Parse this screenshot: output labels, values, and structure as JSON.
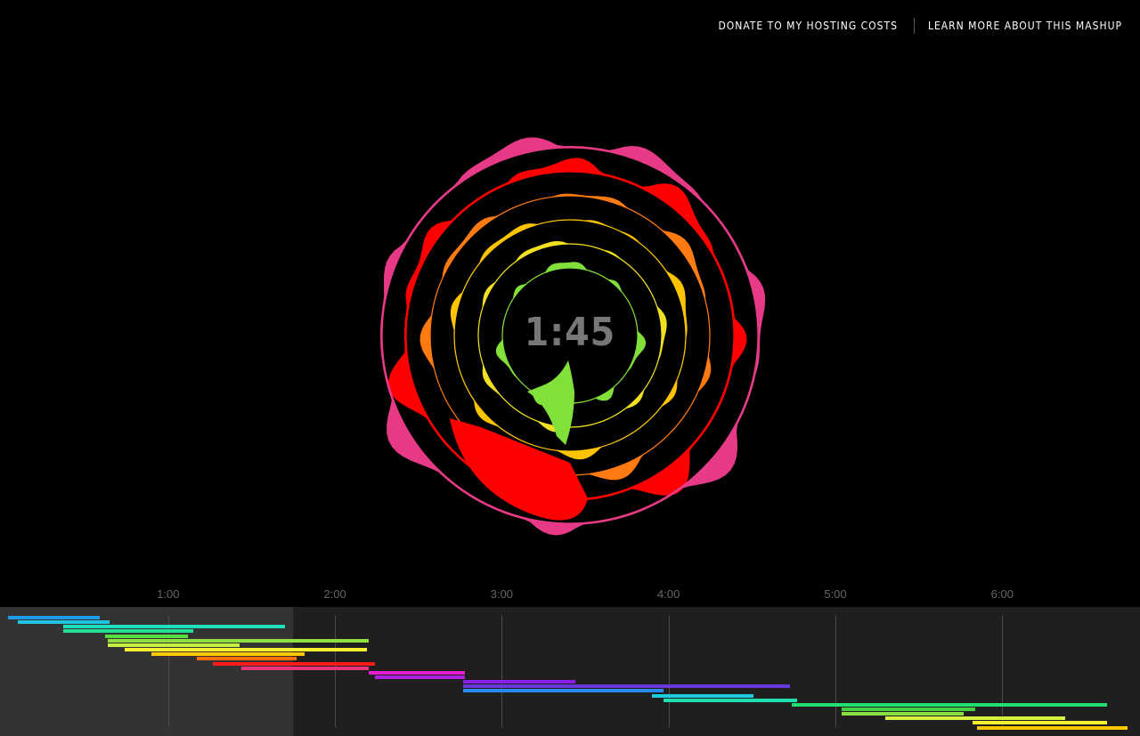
{
  "nav": {
    "donate_label": "DONATE TO MY HOSTING COSTS",
    "learn_label": "LEARN MORE ABOUT THIS MASHUP"
  },
  "player": {
    "current_time": "1:45",
    "played_fraction": 0.257
  },
  "timeline": {
    "ticks": [
      "1:00",
      "2:00",
      "3:00",
      "4:00",
      "5:00",
      "6:00"
    ],
    "tracks": [
      {
        "start": 0.04,
        "end": 0.59,
        "color": "#1e9bea"
      },
      {
        "start": 0.1,
        "end": 0.65,
        "color": "#1ec4e0"
      },
      {
        "start": 0.37,
        "end": 1.7,
        "color": "#1ee0c0"
      },
      {
        "start": 0.37,
        "end": 1.15,
        "color": "#22e09a"
      },
      {
        "start": 0.62,
        "end": 1.12,
        "color": "#55e040"
      },
      {
        "start": 0.64,
        "end": 2.2,
        "color": "#8fe040"
      },
      {
        "start": 0.64,
        "end": 1.43,
        "color": "#c8f040"
      },
      {
        "start": 0.74,
        "end": 2.19,
        "color": "#f5f030"
      },
      {
        "start": 0.9,
        "end": 1.82,
        "color": "#ffc800"
      },
      {
        "start": 1.17,
        "end": 1.77,
        "color": "#ff7000"
      },
      {
        "start": 1.27,
        "end": 2.24,
        "color": "#ff1a1a"
      },
      {
        "start": 1.44,
        "end": 2.2,
        "color": "#e8357c"
      },
      {
        "start": 2.2,
        "end": 2.78,
        "color": "#e020d0"
      },
      {
        "start": 2.24,
        "end": 2.78,
        "color": "#b020e0"
      },
      {
        "start": 2.77,
        "end": 3.44,
        "color": "#8a20e8"
      },
      {
        "start": 2.77,
        "end": 4.73,
        "color": "#6a3ad8"
      },
      {
        "start": 2.77,
        "end": 3.97,
        "color": "#2a8af0"
      },
      {
        "start": 3.9,
        "end": 4.51,
        "color": "#1ecce0"
      },
      {
        "start": 3.97,
        "end": 4.77,
        "color": "#1ee0b0"
      },
      {
        "start": 4.74,
        "end": 6.63,
        "color": "#22e070"
      },
      {
        "start": 5.04,
        "end": 5.84,
        "color": "#44d040"
      },
      {
        "start": 5.04,
        "end": 5.77,
        "color": "#8ae040"
      },
      {
        "start": 5.3,
        "end": 6.38,
        "color": "#d8f040"
      },
      {
        "start": 5.82,
        "end": 6.63,
        "color": "#f5f030"
      },
      {
        "start": 5.85,
        "end": 6.75,
        "color": "#ffc800"
      }
    ]
  },
  "visualizer": {
    "rings": [
      {
        "name": "green",
        "color": "#82e03a"
      },
      {
        "name": "yellow",
        "color": "#f0e020"
      },
      {
        "name": "gold",
        "color": "#ffc400"
      },
      {
        "name": "orange",
        "color": "#ff7a10"
      },
      {
        "name": "red",
        "color": "#ff0000"
      },
      {
        "name": "pink",
        "color": "#e63a86"
      }
    ]
  }
}
